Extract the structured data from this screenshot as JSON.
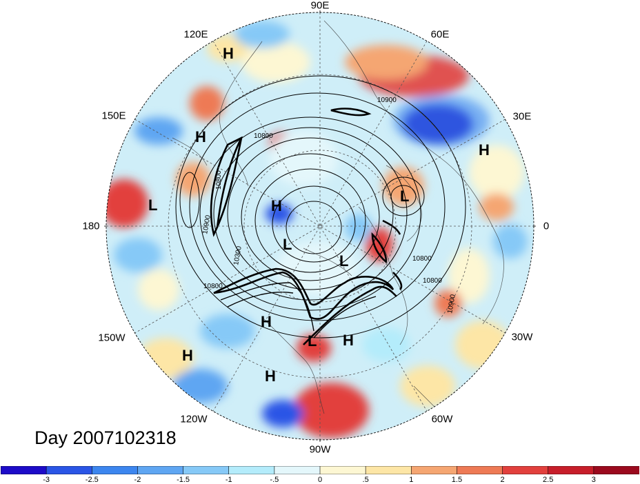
{
  "title": "Day 2007102318",
  "longitude_labels": {
    "lon_90E": "90E",
    "lon_60E": "60E",
    "lon_30E": "30E",
    "lon_0": "0",
    "lon_30W": "30W",
    "lon_60W": "60W",
    "lon_90W": "90W",
    "lon_120W": "120W",
    "lon_150W": "150W",
    "lon_180": "180",
    "lon_150E": "150E",
    "lon_120E": "120E"
  },
  "pressure_centers": [
    {
      "letter": "H"
    },
    {
      "letter": "H"
    },
    {
      "letter": "H"
    },
    {
      "letter": "H"
    },
    {
      "letter": "H"
    },
    {
      "letter": "H"
    },
    {
      "letter": "H"
    },
    {
      "letter": "H"
    },
    {
      "letter": "L"
    },
    {
      "letter": "L"
    },
    {
      "letter": "L"
    },
    {
      "letter": "L"
    },
    {
      "letter": "L"
    }
  ],
  "contour_labels": [
    "10900",
    "10800",
    "10800",
    "10900",
    "10300",
    "10800",
    "10800",
    "10900",
    "10800"
  ],
  "colorbar": {
    "colors": [
      "#1d0bc8",
      "#2a55e6",
      "#3c86ef",
      "#5fa6f2",
      "#86c9f7",
      "#b4ecfb",
      "#e4f7fb",
      "#fdf7d3",
      "#fde6a6",
      "#f5a672",
      "#ee7a55",
      "#e2403d",
      "#c71e2a",
      "#9b0a1e"
    ],
    "tick_labels": [
      "-3",
      "-2.5",
      "-2",
      "-1.5",
      "-1",
      "-.5",
      "0",
      ".5",
      "1",
      "1.5",
      "2",
      "2.5",
      "3"
    ]
  }
}
